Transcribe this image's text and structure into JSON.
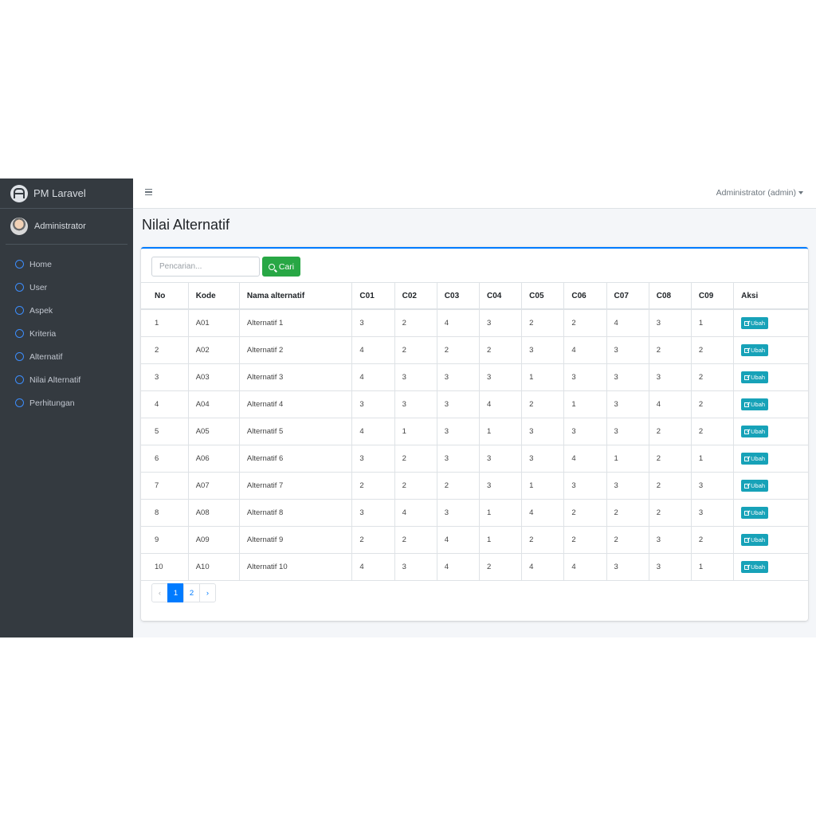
{
  "brand": {
    "name": "PM Laravel"
  },
  "sidebar": {
    "user_name": "Administrator",
    "items": [
      {
        "label": "Home",
        "key": "home"
      },
      {
        "label": "User",
        "key": "user"
      },
      {
        "label": "Aspek",
        "key": "aspek"
      },
      {
        "label": "Kriteria",
        "key": "kriteria"
      },
      {
        "label": "Alternatif",
        "key": "alternatif"
      },
      {
        "label": "Nilai Alternatif",
        "key": "nilai-alternatif"
      },
      {
        "label": "Perhitungan",
        "key": "perhitungan"
      }
    ]
  },
  "topnav": {
    "user_menu": "Administrator (admin)"
  },
  "page": {
    "title": "Nilai Alternatif"
  },
  "search": {
    "placeholder": "Pencarian...",
    "button_label": "Cari"
  },
  "table": {
    "headers": [
      "No",
      "Kode",
      "Nama alternatif",
      "C01",
      "C02",
      "C03",
      "C04",
      "C05",
      "C06",
      "C07",
      "C08",
      "C09",
      "Aksi"
    ],
    "action_label": "Ubah",
    "rows": [
      [
        "1",
        "A01",
        "Alternatif 1",
        "3",
        "2",
        "4",
        "3",
        "2",
        "2",
        "4",
        "3",
        "1"
      ],
      [
        "2",
        "A02",
        "Alternatif 2",
        "4",
        "2",
        "2",
        "2",
        "3",
        "4",
        "3",
        "2",
        "2"
      ],
      [
        "3",
        "A03",
        "Alternatif 3",
        "4",
        "3",
        "3",
        "3",
        "1",
        "3",
        "3",
        "3",
        "2"
      ],
      [
        "4",
        "A04",
        "Alternatif 4",
        "3",
        "3",
        "3",
        "4",
        "2",
        "1",
        "3",
        "4",
        "2"
      ],
      [
        "5",
        "A05",
        "Alternatif 5",
        "4",
        "1",
        "3",
        "1",
        "3",
        "3",
        "3",
        "2",
        "2"
      ],
      [
        "6",
        "A06",
        "Alternatif 6",
        "3",
        "2",
        "3",
        "3",
        "3",
        "4",
        "1",
        "2",
        "1"
      ],
      [
        "7",
        "A07",
        "Alternatif 7",
        "2",
        "2",
        "2",
        "3",
        "1",
        "3",
        "3",
        "2",
        "3"
      ],
      [
        "8",
        "A08",
        "Alternatif 8",
        "3",
        "4",
        "3",
        "1",
        "4",
        "2",
        "2",
        "2",
        "3"
      ],
      [
        "9",
        "A09",
        "Alternatif 9",
        "2",
        "2",
        "4",
        "1",
        "2",
        "2",
        "2",
        "3",
        "2"
      ],
      [
        "10",
        "A10",
        "Alternatif 10",
        "4",
        "3",
        "4",
        "2",
        "4",
        "4",
        "3",
        "3",
        "1"
      ]
    ]
  },
  "pagination": {
    "prev": "‹",
    "pages": [
      "1",
      "2"
    ],
    "next": "›",
    "current": "1"
  },
  "colors": {
    "sidebar": "#343a40",
    "accent": "#007bff",
    "search_button": "#28a745",
    "edit_button": "#17a2b8"
  }
}
